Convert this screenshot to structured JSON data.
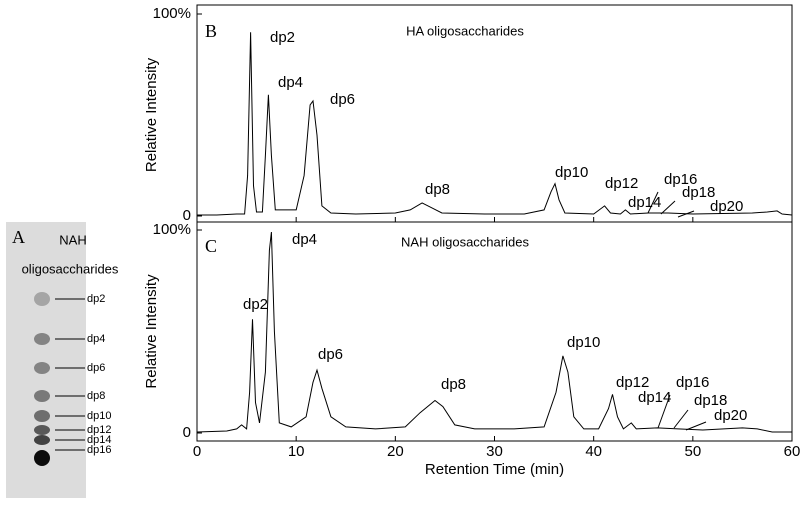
{
  "gel": {
    "panel": "A",
    "title_lines": [
      "NAH",
      "oligosaccharides"
    ],
    "bands": [
      "dp2",
      "dp4",
      "dp6",
      "dp8",
      "dp10",
      "dp12",
      "dp14",
      "dp16"
    ]
  },
  "chart_data": [
    {
      "type": "line",
      "panel": "B",
      "title": "HA oligosaccharides",
      "y_label": "Relative Intensity",
      "color": "#000000",
      "xlim": [
        0,
        60
      ],
      "xticks": [
        0,
        10,
        20,
        30,
        40,
        50,
        60
      ],
      "ylim": [
        0,
        100
      ],
      "yticks": [
        0,
        {
          "value": 100,
          "label": "100%"
        }
      ],
      "annotations": [
        "dp2",
        "dp4",
        "dp6",
        "dp8",
        "dp10",
        "dp12",
        "dp14",
        "dp16",
        "dp18",
        "dp20"
      ],
      "x": [
        0,
        2,
        4,
        4.8,
        5.1,
        5.4,
        5.7,
        6,
        6.6,
        6.9,
        7.2,
        7.5,
        7.9,
        10,
        10.8,
        11.4,
        11.7,
        12.1,
        12.6,
        13.5,
        16,
        20,
        21.5,
        22.7,
        23.7,
        24.7,
        29,
        33,
        35,
        35.7,
        36.1,
        36.5,
        37.1,
        40,
        41.1,
        41.7,
        42.7,
        43.2,
        43.7,
        45.5,
        47.5,
        50,
        56,
        57.5,
        58.5,
        59,
        60
      ],
      "values": [
        0.5,
        0.5,
        1,
        1,
        20,
        91,
        15,
        2,
        2,
        30,
        60,
        30,
        3,
        3,
        20,
        55,
        57,
        40,
        5,
        1.5,
        1,
        1.5,
        3,
        6.5,
        4,
        1.5,
        1,
        1,
        3,
        12,
        16,
        8,
        1.5,
        1,
        5,
        1.5,
        1,
        3,
        1,
        1.5,
        1.5,
        1,
        1.5,
        2,
        2.5,
        1,
        0.5
      ]
    },
    {
      "type": "line",
      "panel": "C",
      "title": "NAH oligosaccharides",
      "y_label": "Relative Intensity",
      "x_label": "Retention Time (min)",
      "color": "#000000",
      "xlim": [
        0,
        60
      ],
      "xticks": [
        0,
        10,
        20,
        30,
        40,
        50,
        60
      ],
      "ylim": [
        0,
        100
      ],
      "yticks": [
        0,
        {
          "value": 100,
          "label": "100%"
        }
      ],
      "annotations": [
        "dp2",
        "dp4",
        "dp6",
        "dp8",
        "dp10",
        "dp12",
        "dp14",
        "dp16",
        "dp18",
        "dp20"
      ],
      "x": [
        0,
        3,
        4,
        4.5,
        5,
        5.3,
        5.6,
        5.9,
        6.3,
        6.9,
        7.3,
        7.5,
        7.8,
        8.3,
        9.5,
        11,
        11.7,
        12.1,
        12.6,
        13.5,
        15,
        18,
        21,
        22.5,
        24,
        24.8,
        26,
        28,
        32,
        35,
        36.2,
        36.9,
        37.4,
        38,
        39,
        40.5,
        41.5,
        41.9,
        42.4,
        43,
        43.8,
        44.3,
        46.4,
        48.5,
        51,
        55,
        56.5,
        58,
        60
      ],
      "values": [
        0.5,
        1,
        2,
        4,
        2,
        20,
        56,
        15,
        5,
        30,
        90,
        99,
        50,
        5,
        3,
        8,
        25,
        31,
        22,
        8,
        3,
        2,
        3,
        10,
        16,
        13,
        4,
        2,
        2,
        3,
        20,
        38,
        30,
        8,
        2,
        2,
        12,
        19,
        8,
        2,
        5,
        2,
        2.5,
        2,
        1.5,
        2.5,
        2,
        0.5,
        0.5
      ]
    }
  ]
}
